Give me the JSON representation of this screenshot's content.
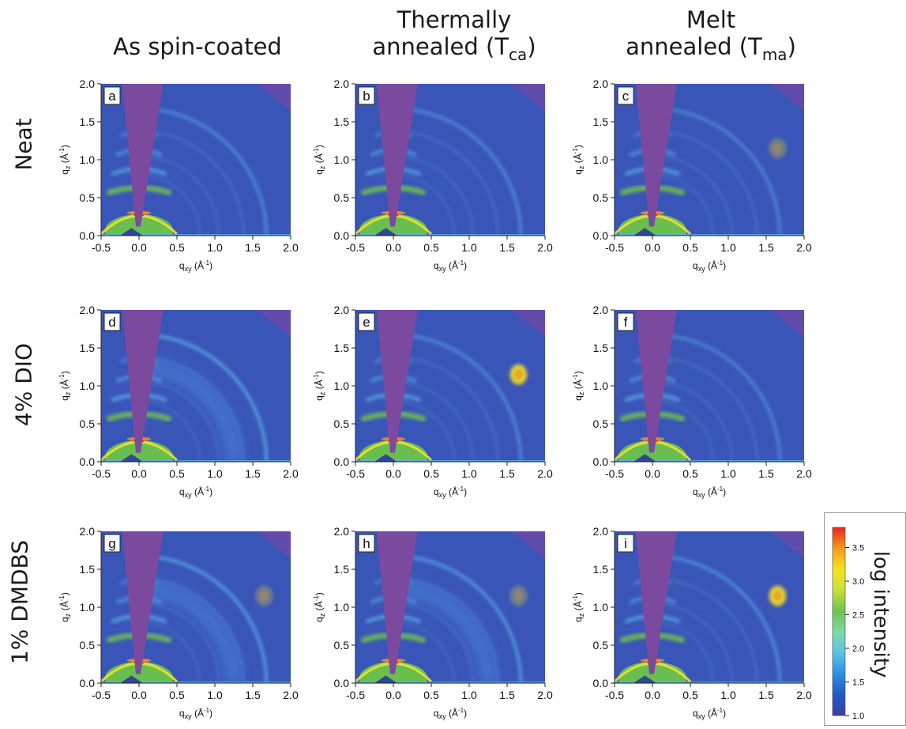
{
  "columns": [
    {
      "line1": "As spin-coated",
      "line2": "",
      "sub": ""
    },
    {
      "line1": "Thermally",
      "line2": "annealed (T",
      "sub": "ca"
    },
    {
      "line1": "Melt",
      "line2": "annealed (T",
      "sub": "ma"
    }
  ],
  "rows": [
    "Neat",
    "4% DIO",
    "1% DMDBS"
  ],
  "panels": [
    {
      "letter": "a",
      "peak": false,
      "outerRing": 0.55
    },
    {
      "letter": "b",
      "peak": false,
      "outerRing": 0.55
    },
    {
      "letter": "c",
      "peak": true,
      "peakStrength": 0.35,
      "outerRing": 0.5
    },
    {
      "letter": "d",
      "peak": false,
      "outerRing": 0.8,
      "diffuse": true
    },
    {
      "letter": "e",
      "peak": true,
      "peakStrength": 1.0,
      "outerRing": 0.55
    },
    {
      "letter": "f",
      "peak": false,
      "outerRing": 0.5
    },
    {
      "letter": "g",
      "peak": true,
      "peakStrength": 0.35,
      "outerRing": 0.75,
      "diffuse": true
    },
    {
      "letter": "h",
      "peak": true,
      "peakStrength": 0.35,
      "outerRing": 0.7,
      "diffuse": true
    },
    {
      "letter": "i",
      "peak": true,
      "peakStrength": 1.0,
      "outerRing": 0.6
    }
  ],
  "axes": {
    "x_ticks": [
      "-0.5",
      "0.0",
      "0.5",
      "1.0",
      "1.5",
      "2.0"
    ],
    "x_values": [
      -0.5,
      0.0,
      0.5,
      1.0,
      1.5,
      2.0
    ],
    "y_ticks": [
      "0.0",
      "0.5",
      "1.0",
      "1.5",
      "2.0"
    ],
    "y_values": [
      0.0,
      0.5,
      1.0,
      1.5,
      2.0
    ],
    "xlim": [
      -0.5,
      2.0
    ],
    "ylim": [
      0.0,
      2.0
    ],
    "xlabel_main": "q",
    "xlabel_sub": "xy",
    "ylabel_main": "q",
    "ylabel_sub": "z",
    "unit": "(Å",
    "unit_sup": "-1",
    "unit_close": ")"
  },
  "colorbar": {
    "title": "log intensity",
    "ticks": [
      "3.5",
      "3.0",
      "2.5",
      "2.0",
      "1.5",
      "1.0"
    ],
    "tick_values": [
      3.5,
      3.0,
      2.5,
      2.0,
      1.5,
      1.0
    ],
    "range": [
      1.0,
      3.8
    ],
    "colors": [
      "#3b3f9e",
      "#2458c9",
      "#2e8fe0",
      "#5cc3e6",
      "#7fd9a8",
      "#6cc44a",
      "#c8e03a",
      "#f7e11c",
      "#f79a1c",
      "#e8261c"
    ]
  },
  "colors": {
    "background": "#3a55b8",
    "beamstop": "#7b4a9e",
    "corner": "#6a4aa8",
    "ring": "#5ab2e8",
    "bright": "#6cc44a",
    "hot": "#e8261c"
  }
}
